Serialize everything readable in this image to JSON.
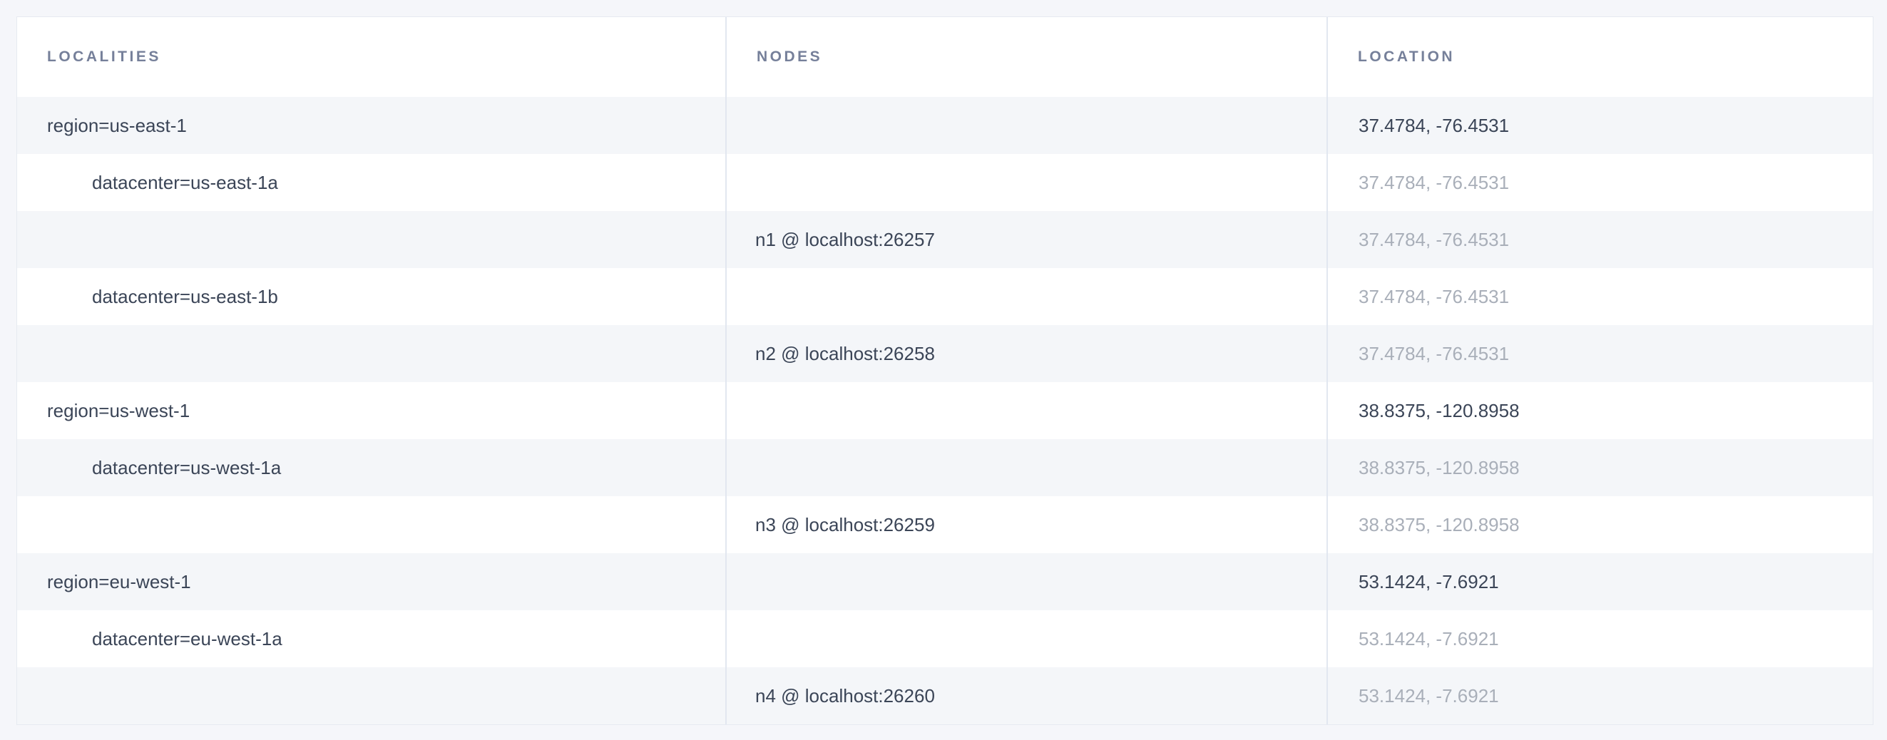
{
  "palette": {
    "page_background": "#f5f6fa",
    "row_stripe": "#f4f6f9",
    "row_plain": "#ffffff",
    "border": "#e2e7f0",
    "header_text": "#76809a",
    "primary_text": "#3b4557",
    "muted_text": "#a9afb9"
  },
  "table": {
    "columns": {
      "localities": "LOCALITIES",
      "nodes": "NODES",
      "location": "LOCATION"
    },
    "rows": [
      {
        "locality": "region=us-east-1",
        "node": "",
        "location": "37.4784, -76.4531"
      },
      {
        "locality": "datacenter=us-east-1a",
        "node": "",
        "location": "37.4784, -76.4531"
      },
      {
        "locality": "",
        "node": "n1 @ localhost:26257",
        "location": "37.4784, -76.4531"
      },
      {
        "locality": "datacenter=us-east-1b",
        "node": "",
        "location": "37.4784, -76.4531"
      },
      {
        "locality": "",
        "node": "n2 @ localhost:26258",
        "location": "37.4784, -76.4531"
      },
      {
        "locality": "region=us-west-1",
        "node": "",
        "location": "38.8375, -120.8958"
      },
      {
        "locality": "datacenter=us-west-1a",
        "node": "",
        "location": "38.8375, -120.8958"
      },
      {
        "locality": "",
        "node": "n3 @ localhost:26259",
        "location": "38.8375, -120.8958"
      },
      {
        "locality": "region=eu-west-1",
        "node": "",
        "location": "53.1424, -7.6921"
      },
      {
        "locality": "datacenter=eu-west-1a",
        "node": "",
        "location": "53.1424, -7.6921"
      },
      {
        "locality": "",
        "node": "n4 @ localhost:26260",
        "location": "53.1424, -7.6921"
      }
    ]
  }
}
